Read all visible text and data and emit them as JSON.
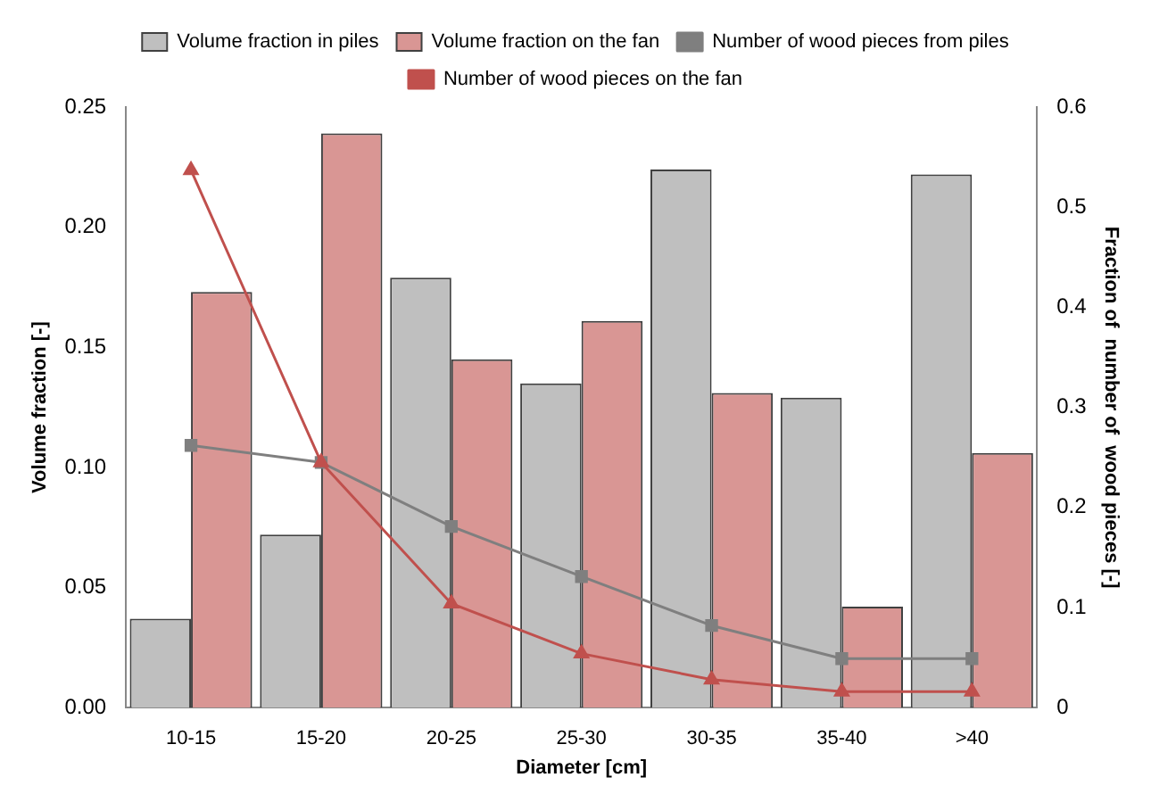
{
  "chart_data": {
    "type": "bar",
    "xlabel": "Diameter [cm]",
    "ylabel": "Volume fraction [-]",
    "y2label": "Fraction of  number of  wood pieces [-]",
    "categories": [
      "10-15",
      "15-20",
      "20-25",
      "25-30",
      "30-35",
      "35-40",
      ">40"
    ],
    "series": [
      {
        "name": "Volume fraction in piles",
        "color": "#bfbfbf",
        "values": [
          0.037,
          0.072,
          0.179,
          0.135,
          0.224,
          0.129,
          0.222
        ]
      },
      {
        "name": "Volume fraction on the fan",
        "color": "#d99694",
        "values": [
          0.173,
          0.239,
          0.145,
          0.161,
          0.131,
          0.042,
          0.106
        ]
      },
      {
        "name": "Number of wood pieces from piles",
        "type": "line",
        "axis": "y2",
        "marker": "square",
        "color": "#7f7f7f",
        "values": [
          0.262,
          0.245,
          0.181,
          0.131,
          0.082,
          0.049,
          0.049
        ]
      },
      {
        "name": "Number of wood pieces on the fan",
        "type": "line",
        "axis": "y2",
        "marker": "triangle",
        "color": "#c0504d",
        "values": [
          0.537,
          0.245,
          0.104,
          0.054,
          0.028,
          0.016,
          0.016
        ]
      }
    ],
    "ylim": [
      0,
      0.25
    ],
    "yticks": [
      {
        "value": 0,
        "label": "0.00"
      },
      {
        "value": 0.05,
        "label": "0.05"
      },
      {
        "value": 0.1,
        "label": "0.10"
      },
      {
        "value": 0.15,
        "label": "0.15"
      },
      {
        "value": 0.2,
        "label": "0.20"
      },
      {
        "value": 0.25,
        "label": "0.25"
      }
    ],
    "y2lim": [
      0,
      0.6
    ],
    "y2ticks": [
      0,
      0.1,
      0.2,
      0.3,
      0.4,
      0.5,
      0.6
    ],
    "legend": "top",
    "grid": false
  }
}
